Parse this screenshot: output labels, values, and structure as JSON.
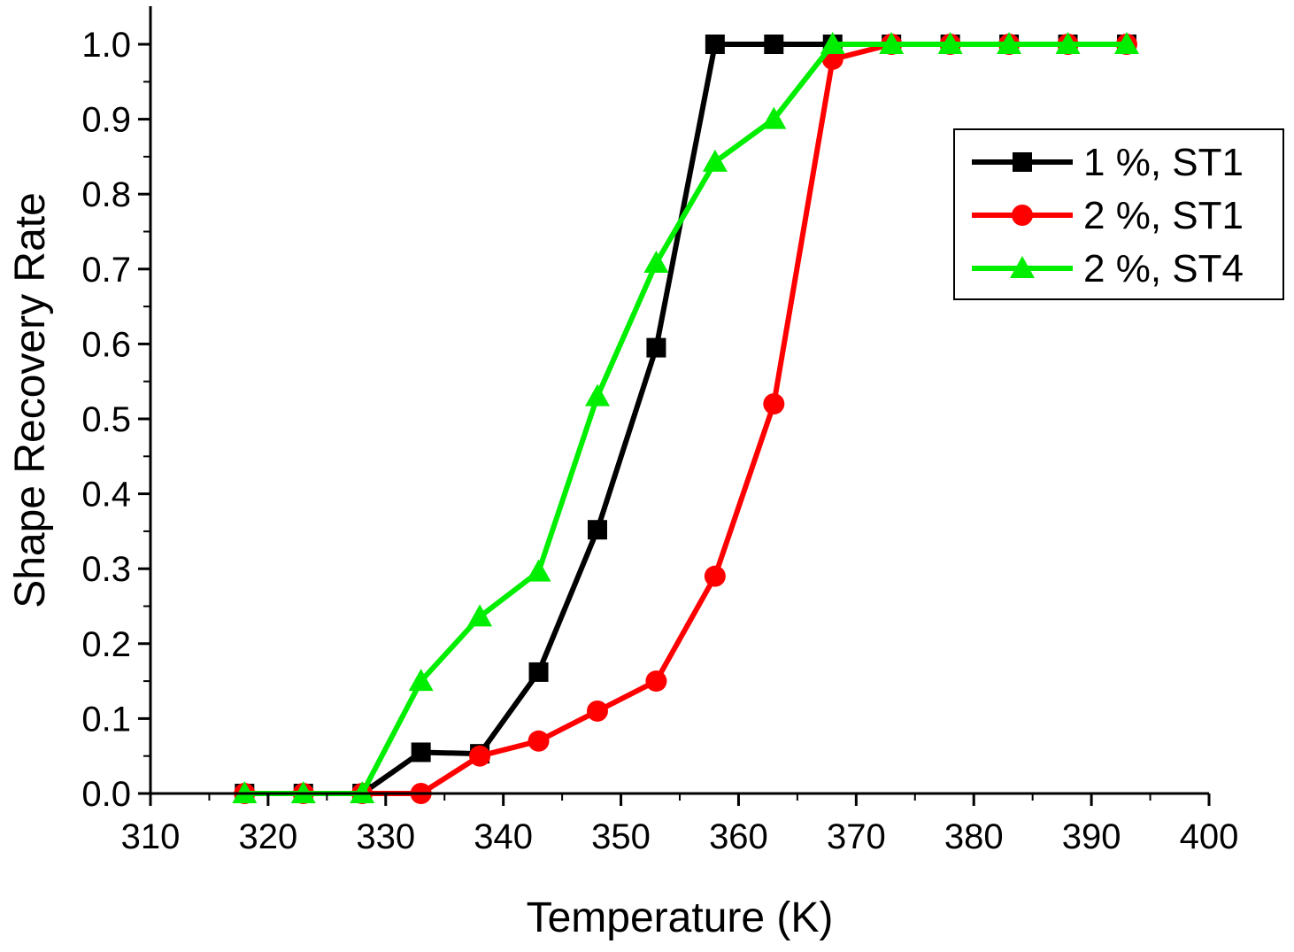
{
  "chart_data": {
    "type": "line",
    "title": "",
    "xlabel": "Temperature (K)",
    "ylabel": "Shape Recovery Rate",
    "xlim": [
      310,
      400
    ],
    "ylim": [
      0.0,
      1.05
    ],
    "xticks": [
      310,
      320,
      330,
      340,
      350,
      360,
      370,
      380,
      390,
      400
    ],
    "xtick_labels": [
      "310",
      "320",
      "330",
      "340",
      "350",
      "360",
      "370",
      "380",
      "390",
      "400"
    ],
    "yticks": [
      0.0,
      0.1,
      0.2,
      0.3,
      0.4,
      0.5,
      0.6,
      0.7,
      0.8,
      0.9,
      1.0
    ],
    "ytick_labels": [
      "0.0",
      "0.1",
      "0.2",
      "0.3",
      "0.4",
      "0.5",
      "0.6",
      "0.7",
      "0.8",
      "0.9",
      "1.0"
    ],
    "grid": false,
    "legend_position": "top-right",
    "x": [
      318,
      323,
      328,
      333,
      338,
      343,
      348,
      353,
      358,
      363,
      368,
      373,
      378,
      383,
      388,
      393
    ],
    "series": [
      {
        "name": "1 %, ST1",
        "color": "#000000",
        "marker": "square",
        "values": [
          0.0,
          0.0,
          0.0,
          0.055,
          0.053,
          0.162,
          0.352,
          0.595,
          1.0,
          1.0,
          1.0,
          1.0,
          1.0,
          1.0,
          1.0,
          1.0
        ]
      },
      {
        "name": "2 %, ST1",
        "color": "#ff0000",
        "marker": "circle",
        "values": [
          0.0,
          0.0,
          0.0,
          0.0,
          0.05,
          0.07,
          0.11,
          0.15,
          0.29,
          0.52,
          0.98,
          1.0,
          1.0,
          1.0,
          1.0,
          1.0
        ]
      },
      {
        "name": "2 %, ST4",
        "color": "#00ee00",
        "marker": "triangle",
        "values": [
          0.0,
          0.0,
          0.0,
          0.15,
          0.236,
          0.296,
          0.53,
          0.708,
          0.843,
          0.9,
          1.0,
          1.0,
          1.0,
          1.0,
          1.0,
          1.0
        ]
      }
    ]
  }
}
